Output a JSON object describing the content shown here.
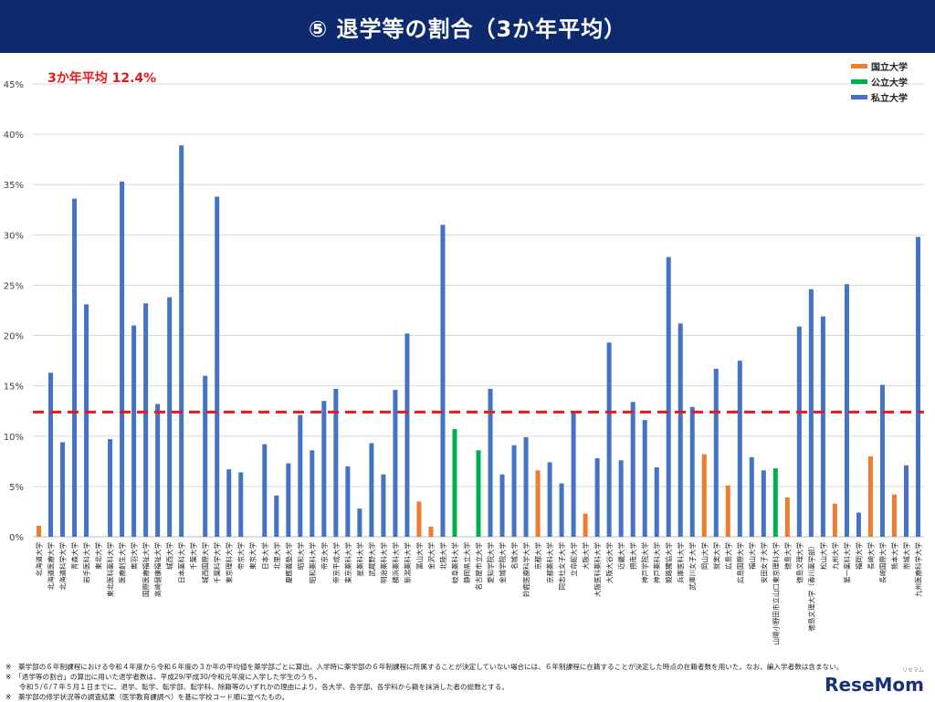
{
  "header": {
    "title": "⑤ 退学等の割合（3か年平均）"
  },
  "colors": {
    "national": "#ed7d31",
    "public": "#00b050",
    "private": "#4472c4",
    "average_line": "#e8191a",
    "header_bg": "#0d2a6e"
  },
  "chart_data": {
    "type": "bar",
    "title": "⑤ 退学等の割合（3か年平均）",
    "ylim": [
      0,
      45
    ],
    "yticks": [
      "0%",
      "5%",
      "10%",
      "15%",
      "20%",
      "25%",
      "30%",
      "35%",
      "40%",
      "45%"
    ],
    "grid": true,
    "legend_position": "top-right",
    "legend": [
      {
        "key": "national",
        "label": "国立大学"
      },
      {
        "key": "public",
        "label": "公立大学"
      },
      {
        "key": "private",
        "label": "私立大学"
      }
    ],
    "average": {
      "label": "3か年平均  12.4%",
      "value": 12.4
    },
    "bars": [
      {
        "name": "北海道大学",
        "type": "national",
        "value": 1.1
      },
      {
        "name": "北海道医療大学",
        "type": "private",
        "value": 16.3
      },
      {
        "name": "北海道科学大学",
        "type": "private",
        "value": 9.4
      },
      {
        "name": "青森大学",
        "type": "private",
        "value": 33.6
      },
      {
        "name": "岩手医科大学",
        "type": "private",
        "value": 23.1
      },
      {
        "name": "東北大学",
        "type": "national",
        "value": 0
      },
      {
        "name": "東北医科薬科大学",
        "type": "private",
        "value": 9.7
      },
      {
        "name": "医療創生大学",
        "type": "private",
        "value": 35.3
      },
      {
        "name": "奥羽大学",
        "type": "private",
        "value": 21.0
      },
      {
        "name": "国際医療福祉大学",
        "type": "private",
        "value": 23.2
      },
      {
        "name": "高崎健康福祉大学",
        "type": "private",
        "value": 13.2
      },
      {
        "name": "城西大学",
        "type": "private",
        "value": 23.8
      },
      {
        "name": "日本薬科大学",
        "type": "private",
        "value": 38.9
      },
      {
        "name": "千葉大学",
        "type": "national",
        "value": 0
      },
      {
        "name": "城西国際大学",
        "type": "private",
        "value": 16.0
      },
      {
        "name": "千葉科学大学",
        "type": "private",
        "value": 33.8
      },
      {
        "name": "東京理科大学",
        "type": "private",
        "value": 6.7
      },
      {
        "name": "帝京大学",
        "type": "private",
        "value": 6.4
      },
      {
        "name": "東京大学",
        "type": "national",
        "value": 0
      },
      {
        "name": "日本大学",
        "type": "private",
        "value": 9.2
      },
      {
        "name": "北里大学",
        "type": "private",
        "value": 4.1
      },
      {
        "name": "慶應義塾大学",
        "type": "private",
        "value": 7.3
      },
      {
        "name": "昭和大学",
        "type": "private",
        "value": 12.1
      },
      {
        "name": "昭和薬科大学",
        "type": "private",
        "value": 8.6
      },
      {
        "name": "帝京大学",
        "type": "private",
        "value": 13.5
      },
      {
        "name": "帝京平成大学",
        "type": "private",
        "value": 14.7
      },
      {
        "name": "東京薬科大学",
        "type": "private",
        "value": 7.0
      },
      {
        "name": "星薬科大学",
        "type": "private",
        "value": 2.8
      },
      {
        "name": "武蔵野大学",
        "type": "private",
        "value": 9.3
      },
      {
        "name": "明治薬科大学",
        "type": "private",
        "value": 6.2
      },
      {
        "name": "横浜薬科大学",
        "type": "private",
        "value": 14.6
      },
      {
        "name": "新潟薬科大学",
        "type": "private",
        "value": 20.2
      },
      {
        "name": "富山大学",
        "type": "national",
        "value": 3.5
      },
      {
        "name": "金沢大学",
        "type": "national",
        "value": 1.0
      },
      {
        "name": "北陸大学",
        "type": "private",
        "value": 31.0
      },
      {
        "name": "岐阜薬科大学",
        "type": "public",
        "value": 10.7
      },
      {
        "name": "静岡県立大学",
        "type": "public",
        "value": 0
      },
      {
        "name": "名古屋市立大学",
        "type": "public",
        "value": 8.6
      },
      {
        "name": "愛知学院大学",
        "type": "private",
        "value": 14.7
      },
      {
        "name": "金城学院大学",
        "type": "private",
        "value": 6.2
      },
      {
        "name": "名城大学",
        "type": "private",
        "value": 9.1
      },
      {
        "name": "鈴鹿医療科学大学",
        "type": "private",
        "value": 9.9
      },
      {
        "name": "京都大学",
        "type": "national",
        "value": 6.6
      },
      {
        "name": "京都薬科大学",
        "type": "private",
        "value": 7.4
      },
      {
        "name": "同志社女子大学",
        "type": "private",
        "value": 5.3
      },
      {
        "name": "立命館大学",
        "type": "private",
        "value": 12.3
      },
      {
        "name": "大阪大学",
        "type": "national",
        "value": 2.3
      },
      {
        "name": "大阪医科薬科大学",
        "type": "private",
        "value": 7.8
      },
      {
        "name": "大阪大谷大学",
        "type": "private",
        "value": 19.3
      },
      {
        "name": "近畿大学",
        "type": "private",
        "value": 7.6
      },
      {
        "name": "摂南大学",
        "type": "private",
        "value": 13.4
      },
      {
        "name": "神戸学院大学",
        "type": "private",
        "value": 11.6
      },
      {
        "name": "神戸薬科大学",
        "type": "private",
        "value": 6.9
      },
      {
        "name": "姫路獨協大学",
        "type": "private",
        "value": 27.8
      },
      {
        "name": "兵庫医科大学",
        "type": "private",
        "value": 21.2
      },
      {
        "name": "武庫川女子大学",
        "type": "private",
        "value": 12.9
      },
      {
        "name": "岡山大学",
        "type": "national",
        "value": 8.2
      },
      {
        "name": "就実大学",
        "type": "private",
        "value": 16.7
      },
      {
        "name": "広島大学",
        "type": "national",
        "value": 5.1
      },
      {
        "name": "広島国際大学",
        "type": "private",
        "value": 17.5
      },
      {
        "name": "福山大学",
        "type": "private",
        "value": 7.9
      },
      {
        "name": "安田女子大学",
        "type": "private",
        "value": 6.6
      },
      {
        "name": "山陽小野田市立山口東京理科大学",
        "type": "public",
        "value": 6.8
      },
      {
        "name": "徳島大学",
        "type": "national",
        "value": 3.9
      },
      {
        "name": "徳島文理大学",
        "type": "private",
        "value": 20.9
      },
      {
        "name": "徳島文理大学（香川薬学部）",
        "type": "private",
        "value": 24.6
      },
      {
        "name": "松山大学",
        "type": "private",
        "value": 21.9
      },
      {
        "name": "九州大学",
        "type": "national",
        "value": 3.3
      },
      {
        "name": "第一薬科大学",
        "type": "private",
        "value": 25.1
      },
      {
        "name": "福岡大学",
        "type": "private",
        "value": 2.4
      },
      {
        "name": "長崎大学",
        "type": "national",
        "value": 8.0
      },
      {
        "name": "長崎国際大学",
        "type": "private",
        "value": 15.1
      },
      {
        "name": "熊本大学",
        "type": "national",
        "value": 4.2
      },
      {
        "name": "崇城大学",
        "type": "private",
        "value": 7.1
      },
      {
        "name": "九州医療科学大学",
        "type": "private",
        "value": 29.8
      }
    ]
  },
  "notes": [
    "※　薬学部の６年制課程における令和４年度から令和６年度の３か年の平均値を薬学部ごとに算出。入学時に薬学部の６年制課程に所属することが決定していない場合には、６年制課程に在籍することが決定した時点の在籍者数を用いた。なお、編入学者数は含まない。",
    "※　「退学等の割合」の算出に用いた退学者数は、平成29/平成30/令和元年度に入学した学生のうち、",
    "　　令和５/６/７年５月１日までに、退学、転学、転学部、転学科、除籍等のいずれかの理由により、各大学、各学部、各学科から籍を抹消した者の総数とする。",
    "※　薬学部の修学状況等の調査結果（医学教育課調べ）を基に学校コード順に並べたもの。"
  ],
  "logo": {
    "text": "ReseMom",
    "sub": "リセマム"
  }
}
